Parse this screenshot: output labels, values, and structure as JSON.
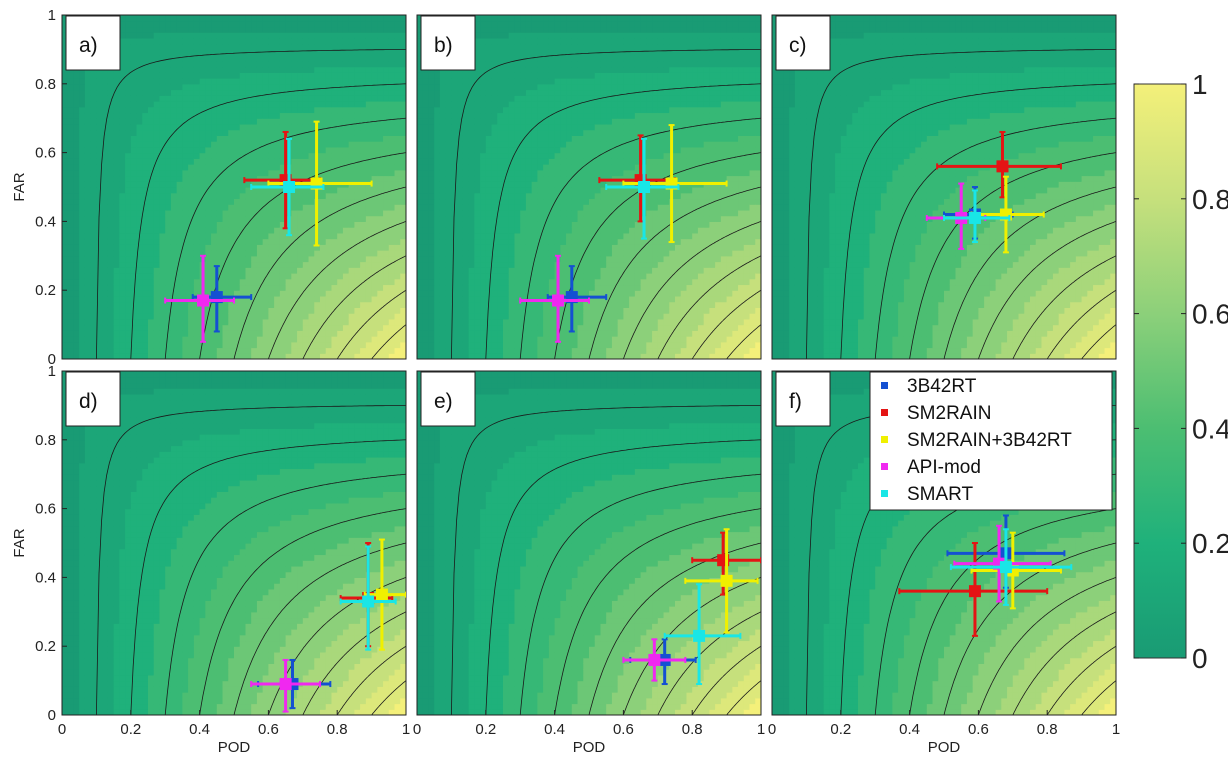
{
  "figure": {
    "colorbar": {
      "ticks": [
        "0",
        "0.2",
        "0.4",
        "0.6",
        "0.8",
        "1"
      ],
      "colors": [
        "#199b74",
        "#1fb17b",
        "#4cbe72",
        "#8cd07a",
        "#c6e07c",
        "#f4f07a"
      ]
    },
    "legend": [
      {
        "label": "3B42RT",
        "color": "#1450d2"
      },
      {
        "label": "SM2RAIN",
        "color": "#e41414"
      },
      {
        "label": "SM2RAIN+3B42RT",
        "color": "#f0f000"
      },
      {
        "label": "API-mod",
        "color": "#f028f0"
      },
      {
        "label": "SMART",
        "color": "#19e6e6"
      }
    ]
  },
  "chart_data": [
    {
      "type": "scatter",
      "panel_label": "a)",
      "xlabel": "",
      "ylabel": "FAR",
      "xlim": [
        0,
        1
      ],
      "ylim": [
        0,
        1
      ],
      "xticks": [],
      "yticks": [
        "0",
        "0.2",
        "0.4",
        "0.6",
        "0.8",
        "1"
      ],
      "series": [
        {
          "name": "3B42RT",
          "pod": 0.45,
          "far": 0.18,
          "pod_err": [
            0.38,
            0.55
          ],
          "far_err": [
            0.08,
            0.27
          ]
        },
        {
          "name": "SM2RAIN",
          "pod": 0.65,
          "far": 0.52,
          "pod_err": [
            0.53,
            0.75
          ],
          "far_err": [
            0.38,
            0.66
          ]
        },
        {
          "name": "SM2RAIN+3B42RT",
          "pod": 0.74,
          "far": 0.51,
          "pod_err": [
            0.6,
            0.9
          ],
          "far_err": [
            0.33,
            0.69
          ]
        },
        {
          "name": "API-mod",
          "pod": 0.41,
          "far": 0.17,
          "pod_err": [
            0.3,
            0.5
          ],
          "far_err": [
            0.05,
            0.3
          ]
        },
        {
          "name": "SMART",
          "pod": 0.66,
          "far": 0.5,
          "pod_err": [
            0.55,
            0.76
          ],
          "far_err": [
            0.36,
            0.64
          ]
        }
      ]
    },
    {
      "type": "scatter",
      "panel_label": "b)",
      "xlabel": "",
      "ylabel": "",
      "xlim": [
        0,
        1
      ],
      "ylim": [
        0,
        1
      ],
      "xticks": [],
      "yticks": [],
      "series": [
        {
          "name": "3B42RT",
          "pod": 0.45,
          "far": 0.18,
          "pod_err": [
            0.38,
            0.55
          ],
          "far_err": [
            0.08,
            0.27
          ]
        },
        {
          "name": "SM2RAIN",
          "pod": 0.65,
          "far": 0.52,
          "pod_err": [
            0.53,
            0.75
          ],
          "far_err": [
            0.4,
            0.65
          ]
        },
        {
          "name": "SM2RAIN+3B42RT",
          "pod": 0.74,
          "far": 0.51,
          "pod_err": [
            0.6,
            0.9
          ],
          "far_err": [
            0.34,
            0.68
          ]
        },
        {
          "name": "API-mod",
          "pod": 0.41,
          "far": 0.17,
          "pod_err": [
            0.3,
            0.5
          ],
          "far_err": [
            0.05,
            0.3
          ]
        },
        {
          "name": "SMART",
          "pod": 0.66,
          "far": 0.5,
          "pod_err": [
            0.55,
            0.76
          ],
          "far_err": [
            0.35,
            0.64
          ]
        }
      ]
    },
    {
      "type": "scatter",
      "panel_label": "c)",
      "xlabel": "",
      "ylabel": "",
      "xlim": [
        0,
        1
      ],
      "ylim": [
        0,
        1
      ],
      "xticks": [],
      "yticks": [],
      "series": [
        {
          "name": "3B42RT",
          "pod": 0.59,
          "far": 0.42,
          "pod_err": [
            0.5,
            0.7
          ],
          "far_err": [
            0.35,
            0.5
          ]
        },
        {
          "name": "SM2RAIN",
          "pod": 0.67,
          "far": 0.56,
          "pod_err": [
            0.48,
            0.84
          ],
          "far_err": [
            0.47,
            0.66
          ]
        },
        {
          "name": "SM2RAIN+3B42RT",
          "pod": 0.68,
          "far": 0.42,
          "pod_err": [
            0.58,
            0.79
          ],
          "far_err": [
            0.31,
            0.53
          ]
        },
        {
          "name": "API-mod",
          "pod": 0.55,
          "far": 0.41,
          "pod_err": [
            0.45,
            0.62
          ],
          "far_err": [
            0.32,
            0.51
          ]
        },
        {
          "name": "SMART",
          "pod": 0.59,
          "far": 0.41,
          "pod_err": [
            0.5,
            0.69
          ],
          "far_err": [
            0.34,
            0.49
          ]
        }
      ]
    },
    {
      "type": "scatter",
      "panel_label": "d)",
      "xlabel": "POD",
      "ylabel": "FAR",
      "xlim": [
        0,
        1
      ],
      "ylim": [
        0,
        1
      ],
      "xticks": [
        "0",
        "0.2",
        "0.4",
        "0.6",
        "0.8",
        "1"
      ],
      "yticks": [
        "0",
        "0.2",
        "0.4",
        "0.6",
        "0.8",
        "1"
      ],
      "series": [
        {
          "name": "3B42RT",
          "pod": 0.67,
          "far": 0.09,
          "pod_err": [
            0.57,
            0.78
          ],
          "far_err": [
            0.02,
            0.16
          ]
        },
        {
          "name": "SM2RAIN",
          "pod": 0.89,
          "far": 0.34,
          "pod_err": [
            0.81,
            0.96
          ],
          "far_err": [
            0.2,
            0.5
          ]
        },
        {
          "name": "SM2RAIN+3B42RT",
          "pod": 0.93,
          "far": 0.35,
          "pod_err": [
            0.88,
            1.0
          ],
          "far_err": [
            0.19,
            0.51
          ]
        },
        {
          "name": "API-mod",
          "pod": 0.65,
          "far": 0.09,
          "pod_err": [
            0.55,
            0.75
          ],
          "far_err": [
            0.01,
            0.16
          ]
        },
        {
          "name": "SMART",
          "pod": 0.89,
          "far": 0.33,
          "pod_err": [
            0.81,
            0.97
          ],
          "far_err": [
            0.19,
            0.49
          ]
        }
      ]
    },
    {
      "type": "scatter",
      "panel_label": "e)",
      "xlabel": "POD",
      "ylabel": "",
      "xlim": [
        0,
        1
      ],
      "ylim": [
        0,
        1
      ],
      "xticks": [
        "0",
        "0.2",
        "0.4",
        "0.6",
        "0.8",
        "1"
      ],
      "yticks": [],
      "series": [
        {
          "name": "3B42RT",
          "pod": 0.72,
          "far": 0.16,
          "pod_err": [
            0.62,
            0.81
          ],
          "far_err": [
            0.09,
            0.22
          ]
        },
        {
          "name": "SM2RAIN",
          "pod": 0.89,
          "far": 0.45,
          "pod_err": [
            0.8,
            1.0
          ],
          "far_err": [
            0.35,
            0.53
          ]
        },
        {
          "name": "SM2RAIN+3B42RT",
          "pod": 0.9,
          "far": 0.39,
          "pod_err": [
            0.78,
            0.99
          ],
          "far_err": [
            0.24,
            0.54
          ]
        },
        {
          "name": "API-mod",
          "pod": 0.69,
          "far": 0.16,
          "pod_err": [
            0.6,
            0.78
          ],
          "far_err": [
            0.1,
            0.22
          ]
        },
        {
          "name": "SMART",
          "pod": 0.82,
          "far": 0.23,
          "pod_err": [
            0.72,
            0.94
          ],
          "far_err": [
            0.09,
            0.38
          ]
        }
      ]
    },
    {
      "type": "scatter",
      "panel_label": "f)",
      "xlabel": "POD",
      "ylabel": "",
      "xlim": [
        0,
        1
      ],
      "ylim": [
        0,
        1
      ],
      "xticks": [
        "0",
        "0.2",
        "0.4",
        "0.6",
        "0.8",
        "1"
      ],
      "yticks": [],
      "series": [
        {
          "name": "3B42RT",
          "pod": 0.68,
          "far": 0.47,
          "pod_err": [
            0.51,
            0.85
          ],
          "far_err": [
            0.37,
            0.58
          ]
        },
        {
          "name": "SM2RAIN",
          "pod": 0.59,
          "far": 0.36,
          "pod_err": [
            0.37,
            0.8
          ],
          "far_err": [
            0.23,
            0.5
          ]
        },
        {
          "name": "SM2RAIN+3B42RT",
          "pod": 0.7,
          "far": 0.42,
          "pod_err": [
            0.58,
            0.84
          ],
          "far_err": [
            0.31,
            0.53
          ]
        },
        {
          "name": "API-mod",
          "pod": 0.66,
          "far": 0.44,
          "pod_err": [
            0.53,
            0.81
          ],
          "far_err": [
            0.33,
            0.55
          ]
        },
        {
          "name": "SMART",
          "pod": 0.68,
          "far": 0.43,
          "pod_err": [
            0.52,
            0.87
          ],
          "far_err": [
            0.32,
            0.54
          ]
        }
      ]
    }
  ]
}
